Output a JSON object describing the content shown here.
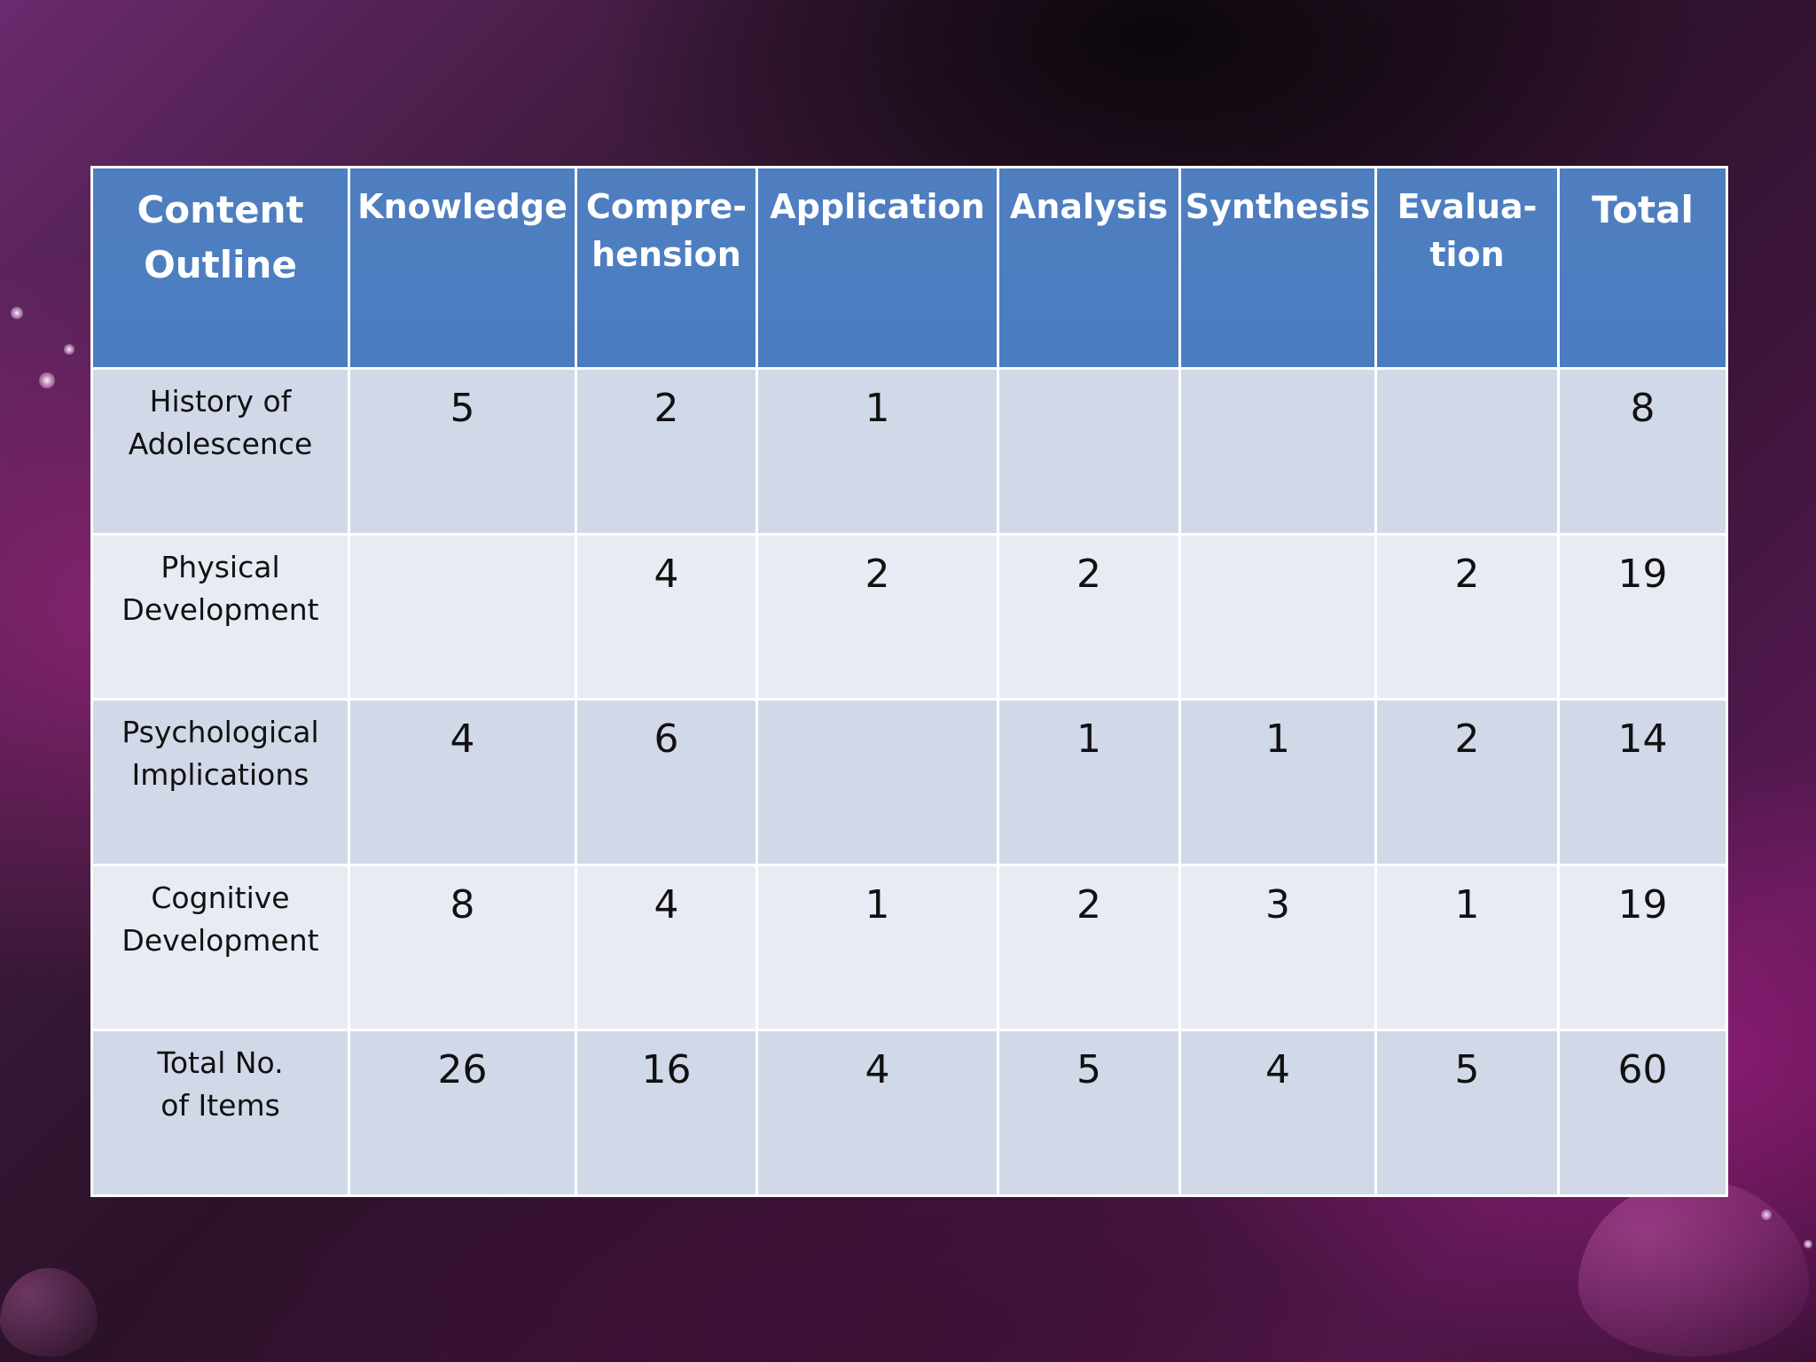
{
  "table": {
    "columns": [
      {
        "lines": [
          "Content",
          "Outline"
        ]
      },
      {
        "lines": [
          "Knowledge"
        ]
      },
      {
        "lines": [
          "Compre-",
          "hension"
        ]
      },
      {
        "lines": [
          "Application"
        ]
      },
      {
        "lines": [
          "Analysis"
        ]
      },
      {
        "lines": [
          "Synthesis"
        ]
      },
      {
        "lines": [
          "Evalua-",
          "tion"
        ]
      },
      {
        "lines": [
          "Total"
        ]
      }
    ],
    "rows": [
      {
        "label": [
          "History of",
          "Adolescence"
        ],
        "values": [
          "5",
          "2",
          "1",
          "",
          "",
          "",
          "8"
        ]
      },
      {
        "label": [
          "Physical",
          "Development"
        ],
        "values": [
          "",
          "4",
          "2",
          "2",
          "",
          "2",
          "19"
        ]
      },
      {
        "label": [
          "Psychological",
          "Implications"
        ],
        "values": [
          "4",
          "6",
          "",
          "1",
          "1",
          "2",
          "14"
        ]
      },
      {
        "label": [
          "Cognitive",
          "Development"
        ],
        "values": [
          "8",
          "4",
          "1",
          "2",
          "3",
          "1",
          "19"
        ]
      },
      {
        "label": [
          "Total No.",
          "of Items"
        ],
        "values": [
          "26",
          "16",
          "4",
          "5",
          "4",
          "5",
          "60"
        ]
      }
    ]
  },
  "colors": {
    "header_bg": "#4a7cc0",
    "row_odd_bg": "#d1d8e8",
    "row_even_bg": "#e9ebf4",
    "border": "#ffffff"
  }
}
